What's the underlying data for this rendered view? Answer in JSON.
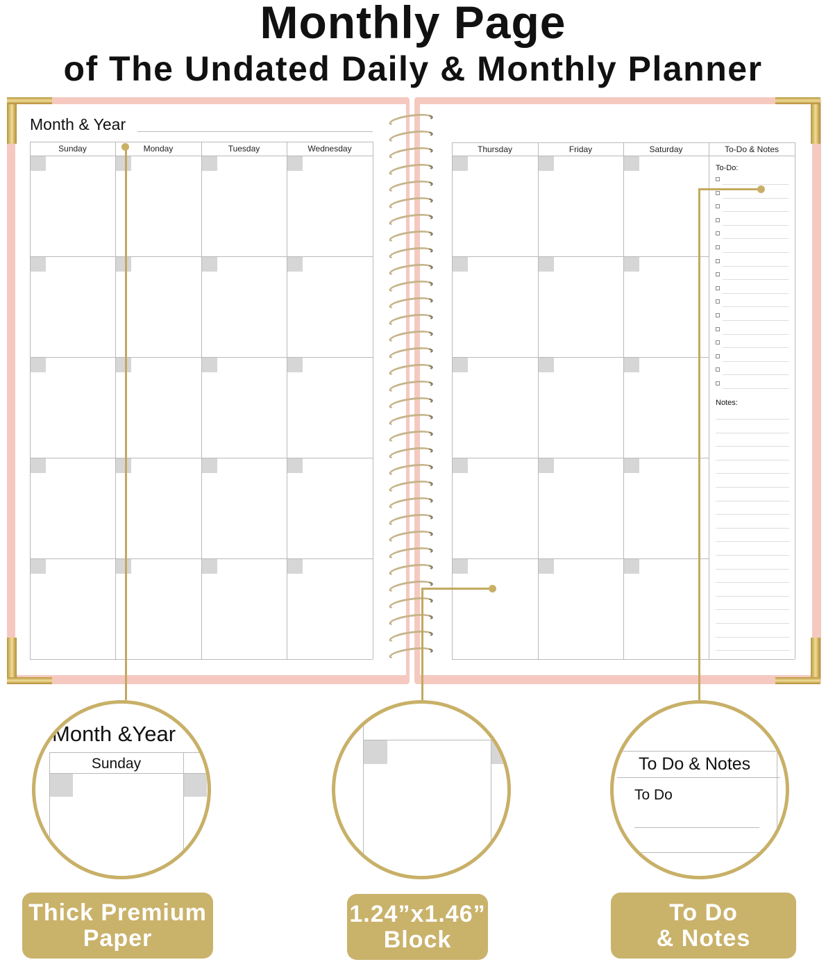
{
  "title": "Monthly Page",
  "subtitle": "of The Undated Daily & Monthly Planner",
  "left_page": {
    "month_year_label": "Month & Year",
    "days": [
      "Sunday",
      "Monday",
      "Tuesday",
      "Wednesday"
    ]
  },
  "right_page": {
    "days": [
      "Thursday",
      "Friday",
      "Saturday",
      "To-Do & Notes"
    ],
    "todo_label": "To-Do:",
    "notes_label": "Notes:"
  },
  "callouts": [
    {
      "zoom_title": "Month &Year",
      "zoom_header": "Sunday",
      "badge": [
        "Thick Premium",
        "Paper"
      ]
    },
    {
      "badge": [
        "1.24”x1.46”",
        "Block"
      ]
    },
    {
      "zoom_header": "To Do & Notes",
      "zoom_label": "To Do",
      "badge": [
        "To Do",
        "& Notes"
      ]
    }
  ],
  "colors": {
    "gold": "#c9b26a",
    "cover_pink": "#f5c9c0"
  }
}
